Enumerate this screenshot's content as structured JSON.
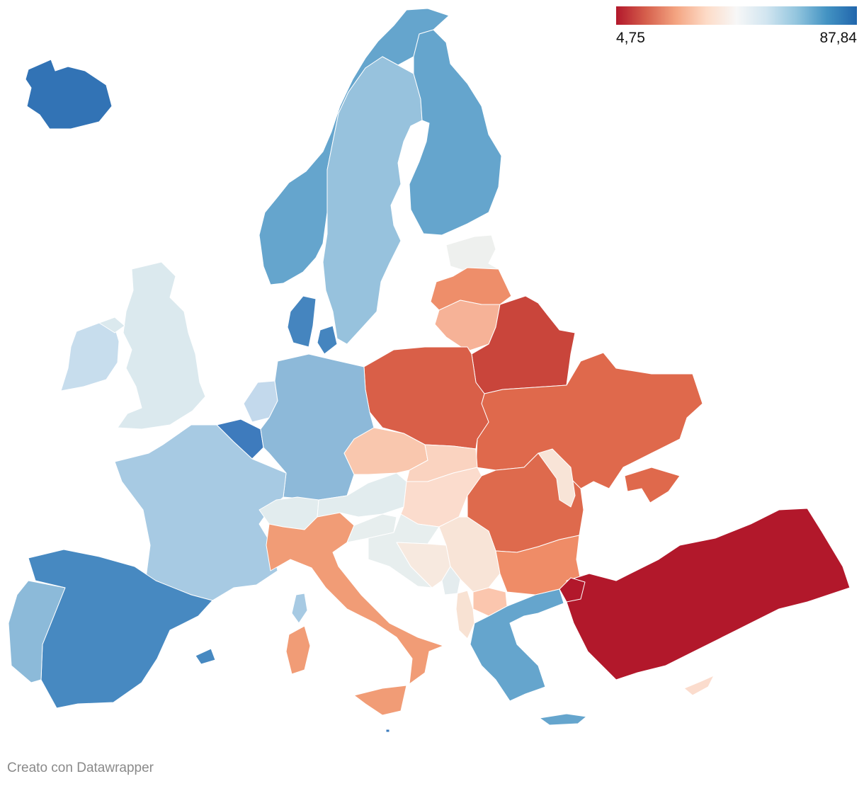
{
  "legend": {
    "min_label": "4,75",
    "max_label": "87,84",
    "min_value": 4.75,
    "max_value": 87.84,
    "gradient_colors": [
      "#b2182b",
      "#d6604d",
      "#f4a582",
      "#fddbc7",
      "#f7f7f7",
      "#d1e5f0",
      "#92c5de",
      "#4393c3",
      "#2166ac"
    ]
  },
  "credit": "Creato con Datawrapper",
  "map_data": {
    "type": "choropleth",
    "regions": [
      {
        "name": "Iceland",
        "color": "#3273b5"
      },
      {
        "name": "Norway",
        "color": "#65a5cd"
      },
      {
        "name": "Sweden",
        "color": "#97c2dd"
      },
      {
        "name": "Finland",
        "color": "#65a5cd"
      },
      {
        "name": "Estonia",
        "color": "#eef0ee"
      },
      {
        "name": "Latvia",
        "color": "#ee8e6a"
      },
      {
        "name": "Lithuania",
        "color": "#f6b297"
      },
      {
        "name": "Belarus",
        "color": "#c9453b"
      },
      {
        "name": "Ukraine",
        "color": "#df694c"
      },
      {
        "name": "Poland",
        "color": "#d95f48"
      },
      {
        "name": "Ireland",
        "color": "#c7dded"
      },
      {
        "name": "United Kingdom",
        "color": "#dbe9ee"
      },
      {
        "name": "Denmark",
        "color": "#4585bf"
      },
      {
        "name": "Netherlands",
        "color": "#c3d9ec"
      },
      {
        "name": "Belgium",
        "color": "#3e7bbd"
      },
      {
        "name": "Germany",
        "color": "#8db9d9"
      },
      {
        "name": "France",
        "color": "#a7cae3"
      },
      {
        "name": "Spain",
        "color": "#4789c1"
      },
      {
        "name": "Portugal",
        "color": "#8cbad9"
      },
      {
        "name": "Czechia",
        "color": "#f9c7ae"
      },
      {
        "name": "Slovakia",
        "color": "#fad3c0"
      },
      {
        "name": "Austria",
        "color": "#e2ecee"
      },
      {
        "name": "Switzerland",
        "color": "#e2ecee"
      },
      {
        "name": "Hungary",
        "color": "#fbdccd"
      },
      {
        "name": "Romania",
        "color": "#de6a4d"
      },
      {
        "name": "Moldova",
        "color": "#f8e4d7"
      },
      {
        "name": "Italy",
        "color": "#f19c76"
      },
      {
        "name": "Slovenia",
        "color": "#e7eeee"
      },
      {
        "name": "Croatia",
        "color": "#e7eeee"
      },
      {
        "name": "Bosnia and Herzegovina",
        "color": "#f7e9df"
      },
      {
        "name": "Serbia",
        "color": "#f8e4d7"
      },
      {
        "name": "Montenegro",
        "color": "#e4ecee"
      },
      {
        "name": "Albania",
        "color": "#f8e2d3"
      },
      {
        "name": "North Macedonia",
        "color": "#fbc6ae"
      },
      {
        "name": "Bulgaria",
        "color": "#ef8c67"
      },
      {
        "name": "Greece",
        "color": "#65a5cd"
      },
      {
        "name": "Turkey",
        "color": "#b2182b"
      },
      {
        "name": "Cyprus",
        "color": "#fbdccd"
      },
      {
        "name": "Malta",
        "color": "#3b7bbd"
      }
    ]
  }
}
